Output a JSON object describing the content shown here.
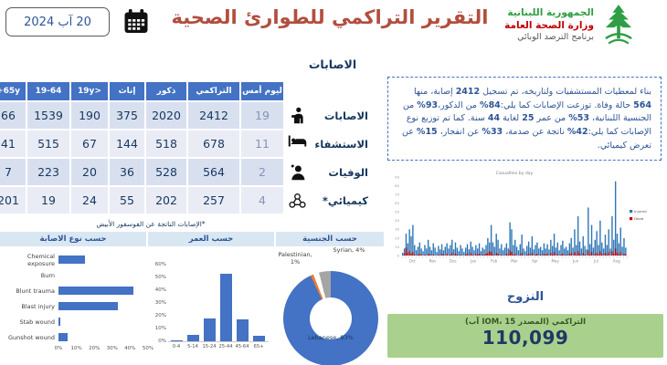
{
  "header": {
    "date": "20 آب 2024",
    "title": "التقرير التراكمي للطوارئ الصحية",
    "org": {
      "line1": "الجمهورية اللبنانية",
      "line2": "وزارة الصحة العامة",
      "line3": "برنامج الترصد الوبائي"
    }
  },
  "injuries_section": {
    "title": "الاصابات",
    "table": {
      "columns": [
        "ليوم أمس",
        "التراكمي",
        "ذكور",
        "إناث",
        "<19y",
        "19-64",
        "65y+"
      ],
      "rows": [
        {
          "label": "الاصابات",
          "icon": "injured-person-icon",
          "values": [
            "19",
            "2412",
            "2020",
            "375",
            "190",
            "1539",
            "66"
          ]
        },
        {
          "label": "الاستشفاء",
          "icon": "hospital-bed-icon",
          "values": [
            "11",
            "678",
            "518",
            "144",
            "67",
            "515",
            "41"
          ]
        },
        {
          "label": "الوفيات",
          "icon": "deceased-person-icon",
          "values": [
            "2",
            "564",
            "528",
            "36",
            "20",
            "223",
            "7"
          ]
        },
        {
          "label": "كيميائي*",
          "icon": "molecule-icon",
          "values": [
            "4",
            "257",
            "202",
            "55",
            "24",
            "19",
            "201"
          ]
        }
      ],
      "footnote": "*الإصابات الناتجة عن الفوسفور الأبيض"
    }
  },
  "summary_box": {
    "text": "بناء لمعطيات المستشفيات ولتاريخه، تم تسجيل 2412 إصابة، منها 564 حالة وفاة. توزعت الإصابات كما يلي:84% من الذكور،93% من الجنسية اللبنانية، 53% من عمر 25 لغاية 44 سنة. كما تم توزيع نوع الإصابات كما يلي:42% ناتجة عن صدمة، 33% عن انفجار، 15% عن تعرض كيميائي."
  },
  "displacement": {
    "title": "النزوح",
    "label": "التراكمي (المصدر IOM، 15 آب)",
    "value": "110,099"
  },
  "colors": {
    "accent_blue": "#4472C4",
    "title_red": "#B24E3F",
    "table_navy": "#17375E",
    "green_box": "#A9D18D",
    "bar_blue": "#2E75B6",
    "death_red": "#C00000"
  },
  "chart_data": [
    {
      "id": "injury_type",
      "type": "bar",
      "orientation": "horizontal",
      "title": "حسب نوع الاصابة",
      "categories": [
        "Chemical exposure",
        "Burn",
        "Blunt trauma",
        "Blast injury",
        "Stab wound",
        "Gunshot wound"
      ],
      "values": [
        15,
        0,
        42,
        33,
        1,
        5
      ],
      "xlim": [
        0,
        50
      ],
      "x_ticks": [
        "0%",
        "10%",
        "20%",
        "30%",
        "40%",
        "50%"
      ],
      "grid": false
    },
    {
      "id": "age",
      "type": "bar",
      "title": "حسب العمر",
      "categories": [
        "0-4",
        "5-14",
        "15-24",
        "25-44",
        "45-64",
        "65+"
      ],
      "values": [
        0.5,
        5,
        18,
        53,
        17,
        4
      ],
      "ylim": [
        0,
        60
      ],
      "y_ticks": [
        "0%",
        "10%",
        "20%",
        "30%",
        "40%",
        "50%",
        "60%"
      ],
      "grid": false
    },
    {
      "id": "nationality",
      "type": "pie",
      "title": "حسب الجنسية",
      "slices": [
        {
          "label": "Lebanese",
          "pct": 93,
          "color": "#4472C4"
        },
        {
          "label": "Palestinian",
          "pct": 1,
          "color": "#ED7D31"
        },
        {
          "label": "Syrian",
          "pct": 4,
          "color": "#A5A5A5"
        }
      ],
      "legend_position": "data-labels"
    },
    {
      "id": "casualties",
      "type": "bar",
      "title": "Casualties by day",
      "x_months": [
        "Oct",
        "Nov",
        "Dec",
        "Jan",
        "Feb",
        "Mar",
        "Apr",
        "May",
        "Jun",
        "Jul",
        "Aug"
      ],
      "ylim": [
        0,
        90
      ],
      "y_ticks": [
        0,
        10,
        20,
        30,
        40,
        50,
        60,
        70,
        80,
        90
      ],
      "legend_position": "right",
      "series": [
        {
          "name": "Injured",
          "color": "#2E75B6",
          "values": [
            3,
            8,
            25,
            14,
            30,
            22,
            35,
            12,
            6,
            10,
            15,
            8,
            5,
            12,
            8,
            18,
            10,
            6,
            14,
            9,
            4,
            11,
            7,
            13,
            6,
            10,
            14,
            8,
            12,
            18,
            7,
            15,
            9,
            5,
            12,
            8,
            4,
            9,
            13,
            7,
            16,
            10,
            6,
            12,
            8,
            14,
            5,
            9,
            7,
            12,
            20,
            15,
            35,
            15,
            10,
            25,
            18,
            8,
            13,
            6,
            9,
            14,
            8,
            38,
            30,
            12,
            18,
            10,
            6,
            13,
            24,
            8,
            5,
            11,
            16,
            9,
            22,
            7,
            12,
            15,
            8,
            10,
            6,
            14,
            8,
            13,
            7,
            18,
            11,
            25,
            9,
            15,
            6,
            12,
            17,
            8,
            10,
            6,
            14,
            20,
            9,
            30,
            12,
            45,
            16,
            8,
            22,
            11,
            7,
            55,
            13,
            35,
            9,
            18,
            28,
            12,
            40,
            15,
            8,
            24,
            12,
            30,
            8,
            45,
            18,
            85,
            25,
            14,
            32,
            10,
            20,
            9
          ]
        },
        {
          "name": "Dead",
          "color": "#C00000",
          "values": [
            0,
            2,
            9,
            3,
            5,
            2,
            4,
            1,
            0,
            1,
            2,
            1,
            0,
            1,
            0,
            2,
            1,
            0,
            1,
            0,
            0,
            1,
            0,
            2,
            1,
            0,
            2,
            0,
            1,
            3,
            0,
            2,
            1,
            0,
            1,
            0,
            0,
            1,
            2,
            0,
            3,
            1,
            0,
            2,
            1,
            2,
            0,
            1,
            1,
            2,
            3,
            5,
            4,
            1,
            0,
            3,
            2,
            0,
            1,
            0,
            0,
            2,
            1,
            6,
            4,
            1,
            2,
            0,
            0,
            1,
            3,
            0,
            0,
            1,
            2,
            0,
            3,
            0,
            1,
            2,
            0,
            1,
            0,
            2,
            1,
            2,
            0,
            3,
            1,
            4,
            0,
            2,
            0,
            1,
            2,
            0,
            1,
            0,
            2,
            3,
            0,
            4,
            1,
            5,
            2,
            0,
            3,
            1,
            0,
            6,
            1,
            4,
            0,
            2,
            3,
            1,
            5,
            2,
            0,
            3,
            1,
            4,
            0,
            5,
            2,
            8,
            3,
            1,
            4,
            0,
            2,
            1
          ]
        }
      ]
    }
  ]
}
